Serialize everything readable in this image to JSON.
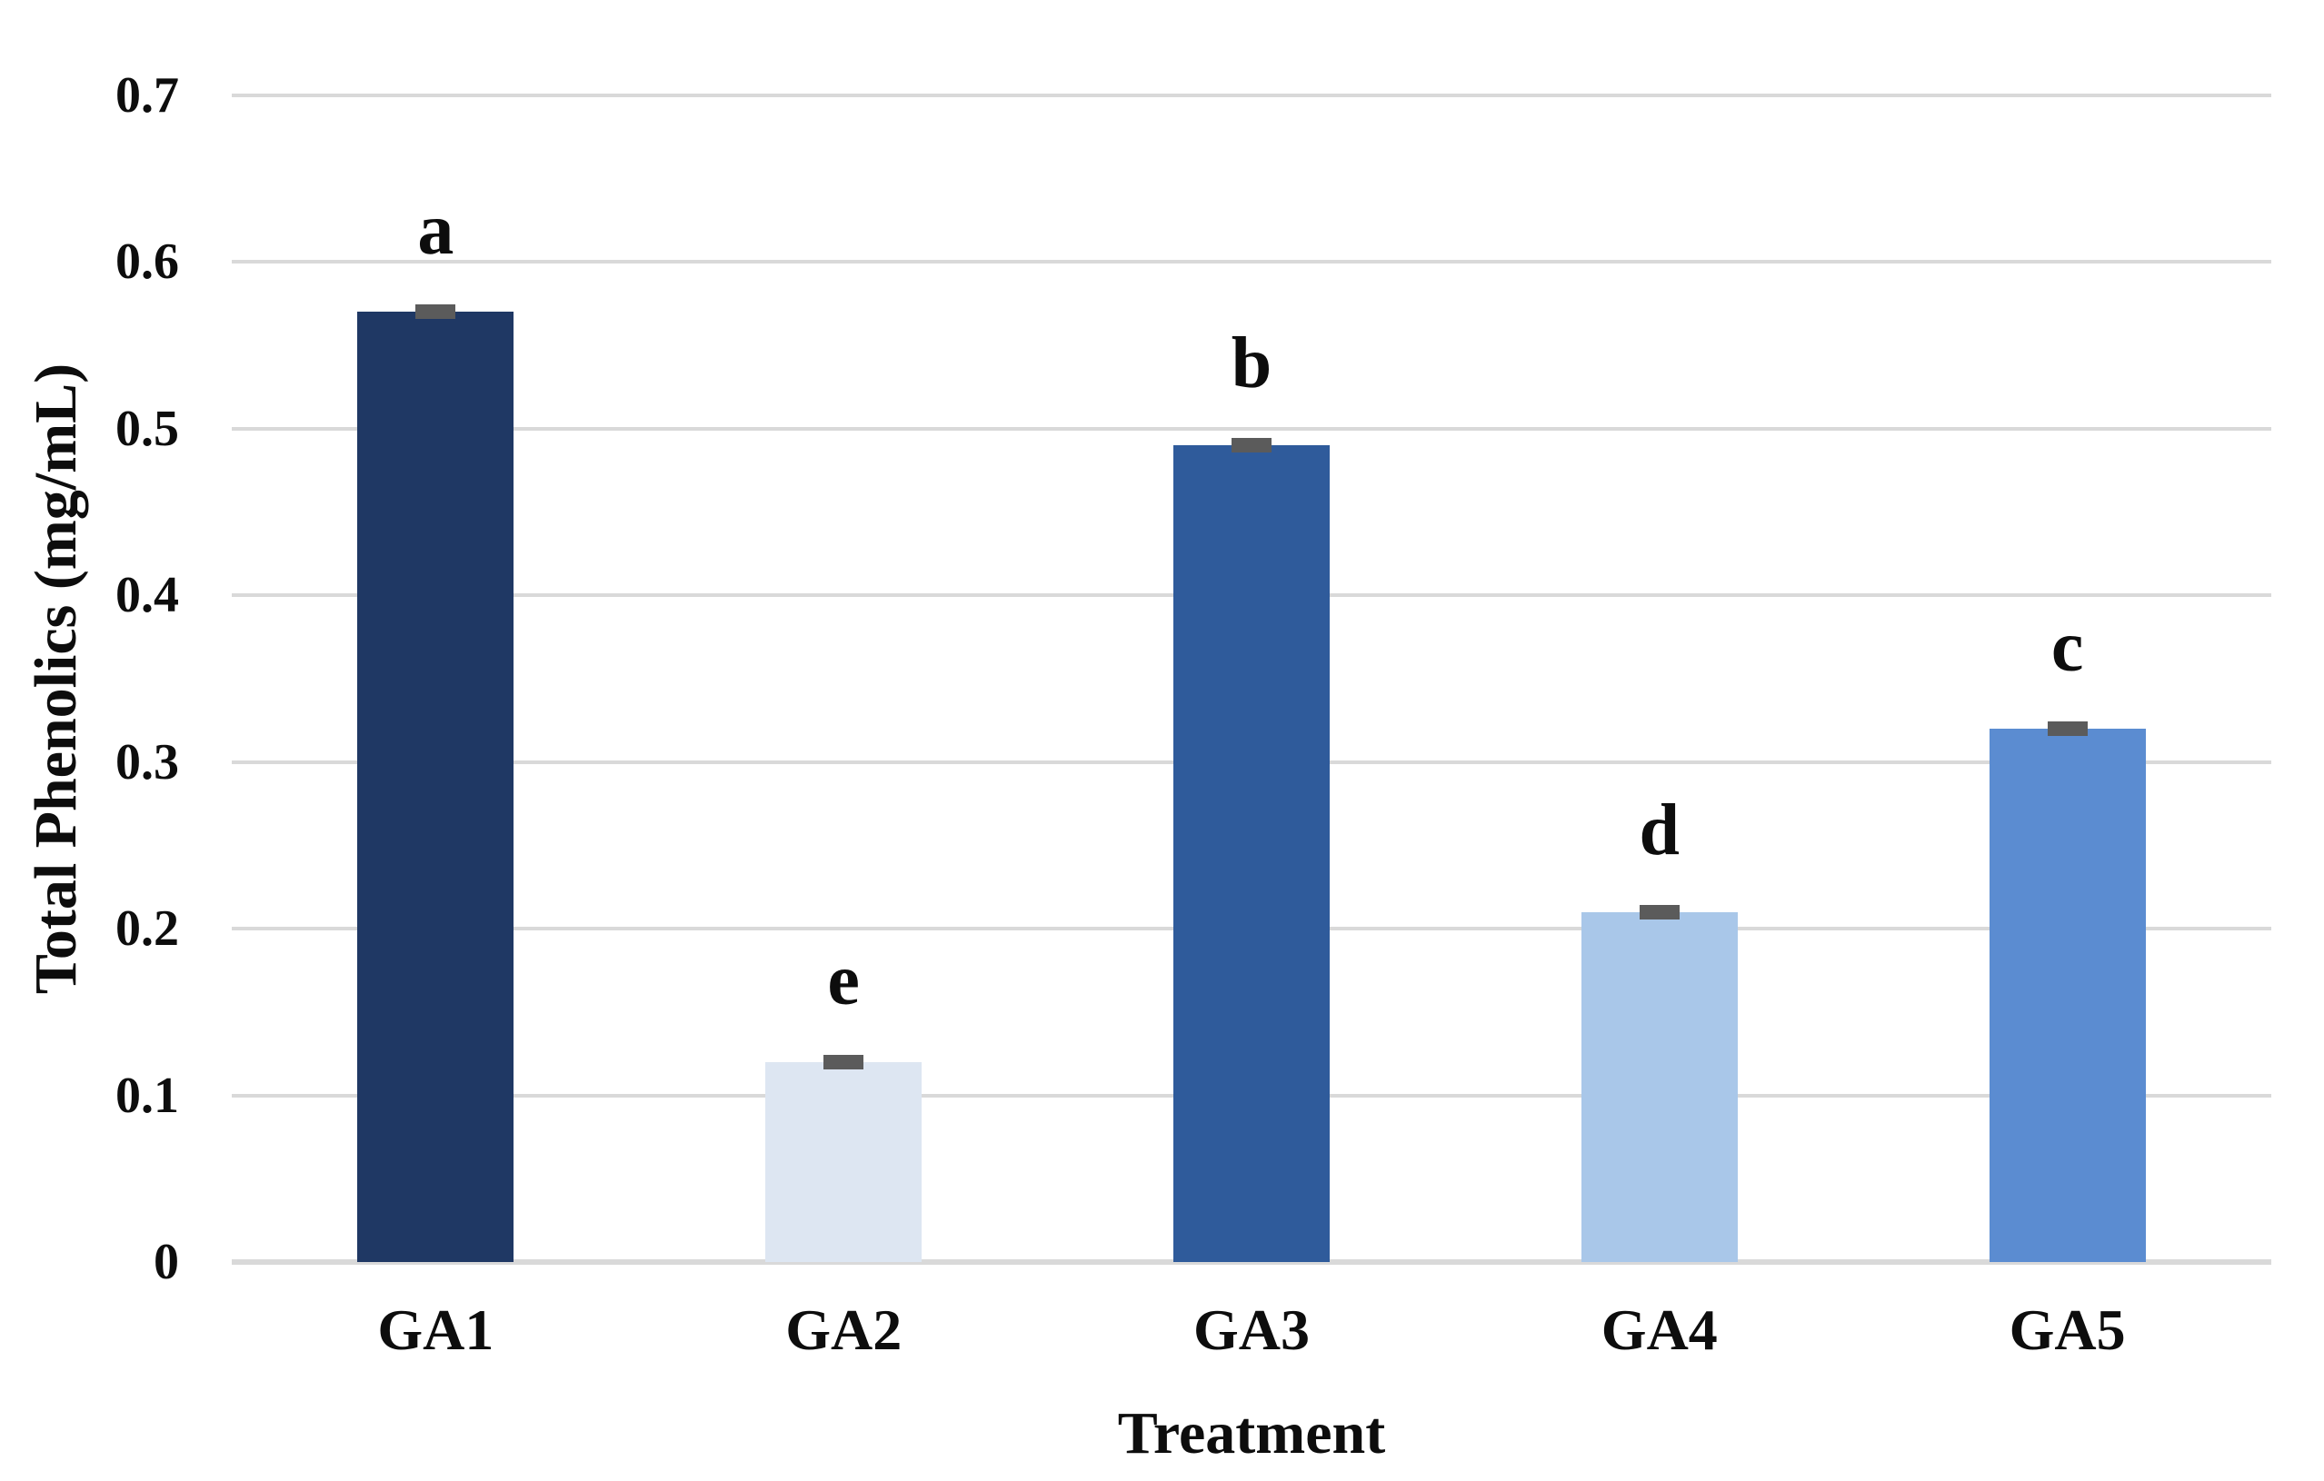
{
  "chart_data": {
    "type": "bar",
    "categories": [
      "GA1",
      "GA2",
      "GA3",
      "GA4",
      "GA5"
    ],
    "values": [
      0.57,
      0.12,
      0.49,
      0.21,
      0.32
    ],
    "significance_letters": [
      "a",
      "e",
      "b",
      "d",
      "c"
    ],
    "bar_colors": [
      "#1F3864",
      "#DDE6F2",
      "#2F5B9B",
      "#A9C7E9",
      "#5B8CD1"
    ],
    "error_bars": {
      "visible": true,
      "approx_value": 0.005,
      "color": "#5B5B5B"
    },
    "title": "",
    "xlabel": "Treatment",
    "ylabel": "Total Phenolics (mg/mL)",
    "ylim": [
      0,
      0.7
    ],
    "ytick_step": 0.1,
    "ytick_labels": [
      "0",
      "0.1",
      "0.2",
      "0.3",
      "0.4",
      "0.5",
      "0.6",
      "0.7"
    ],
    "grid": true,
    "gridline_color": "#D9D9D9",
    "legend": "none",
    "background": "#FFFFFF"
  }
}
